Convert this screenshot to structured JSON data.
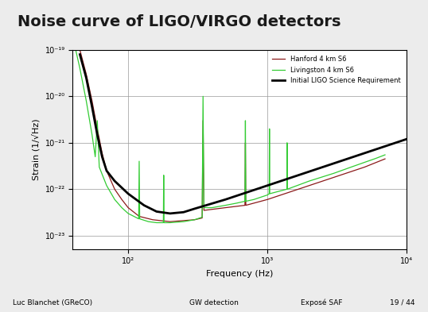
{
  "chart_data": {
    "type": "line",
    "title": "Noise curve of LIGO/VIRGO detectors",
    "x_label": "Frequency (Hz)",
    "y_label": "Strain (1/√Hz)",
    "log": true,
    "grid": true,
    "legend": "upper right",
    "xlim": [
      40,
      10000
    ],
    "xticks": [
      {
        "value": 100,
        "label": "10²"
      },
      {
        "value": 1000,
        "label": "10³"
      },
      {
        "value": 10000,
        "label": "10⁴"
      }
    ],
    "ylim": [
      5e-24,
      1e-19
    ],
    "yticks": [
      {
        "value": 1e-23,
        "label": "10⁻²³"
      },
      {
        "value": 1e-22,
        "label": "10⁻²²"
      },
      {
        "value": 1e-21,
        "label": "10⁻²¹"
      },
      {
        "value": 1e-20,
        "label": "10⁻²⁰"
      },
      {
        "value": 1e-19,
        "label": "10⁻¹⁹"
      }
    ],
    "series": [
      {
        "name": "Hanford 4 km S6",
        "color": "#8b1a1a",
        "line_style": "solid",
        "x": [
          45,
          50,
          55,
          60,
          65,
          70,
          80,
          90,
          100,
          120,
          150,
          200,
          300,
          340,
          345,
          350,
          500,
          690,
          695,
          700,
          1000,
          2000,
          3000,
          5000,
          7000
        ],
        "values": [
          1e-19,
          3e-20,
          8e-21,
          2e-21,
          6e-22,
          2.5e-22,
          1e-22,
          6e-23,
          4e-23,
          2.6e-23,
          2.2e-23,
          2e-23,
          2.2e-23,
          2.4e-23,
          3e-21,
          3.5e-23,
          4e-23,
          4.5e-23,
          1e-21,
          4.5e-23,
          6e-23,
          1.2e-22,
          1.8e-22,
          3e-22,
          4.5e-22
        ]
      },
      {
        "name": "Livingston 4 km S6",
        "color": "#33cc33",
        "line_style": "solid",
        "x": [
          42,
          45,
          50,
          55,
          58,
          60,
          62,
          70,
          80,
          90,
          100,
          110,
          119,
          120,
          121,
          140,
          160,
          179,
          180,
          181,
          200,
          250,
          300,
          340,
          345,
          350,
          400,
          500,
          600,
          690,
          695,
          700,
          800,
          1000,
          1030,
          1035,
          1040,
          1380,
          1385,
          1390,
          2000,
          3000,
          4000,
          5000,
          6000,
          7000
        ],
        "values": [
          1e-19,
          4e-20,
          8e-21,
          1.5e-21,
          5e-22,
          3e-21,
          3e-22,
          1.2e-22,
          6e-23,
          4e-23,
          3e-23,
          2.6e-23,
          2.3e-23,
          4e-22,
          2.3e-23,
          2e-23,
          1.9e-23,
          1.9e-23,
          2e-22,
          1.9e-23,
          1.9e-23,
          2e-23,
          2.2e-23,
          2.5e-23,
          1e-20,
          4e-23,
          4e-23,
          4.5e-23,
          5e-23,
          5.5e-23,
          3e-21,
          5.5e-23,
          6e-23,
          7.5e-23,
          8e-23,
          2e-21,
          8e-23,
          1e-22,
          1e-21,
          1e-22,
          1.5e-22,
          2.2e-22,
          3e-22,
          3.8e-22,
          4.6e-22,
          5.5e-22
        ]
      },
      {
        "name": "Initial LIGO Science Requirement",
        "color": "#000000",
        "line_style": "solid",
        "x": [
          45,
          50,
          55,
          60,
          65,
          70,
          80,
          100,
          130,
          160,
          200,
          250,
          300,
          500,
          1000,
          2000,
          5000,
          10000
        ],
        "values": [
          8e-20,
          2.5e-20,
          6e-21,
          1.5e-21,
          5e-22,
          2.5e-22,
          1.5e-22,
          8e-23,
          4.5e-23,
          3.3e-23,
          3e-23,
          3.2e-23,
          3.8e-23,
          6e-23,
          1.2e-22,
          2.4e-22,
          6e-22,
          1.2e-21
        ]
      }
    ]
  },
  "footer": [
    "Luc Blanchet (GReCO)",
    "GW detection",
    "Exposé SAF",
    "19 / 44"
  ]
}
